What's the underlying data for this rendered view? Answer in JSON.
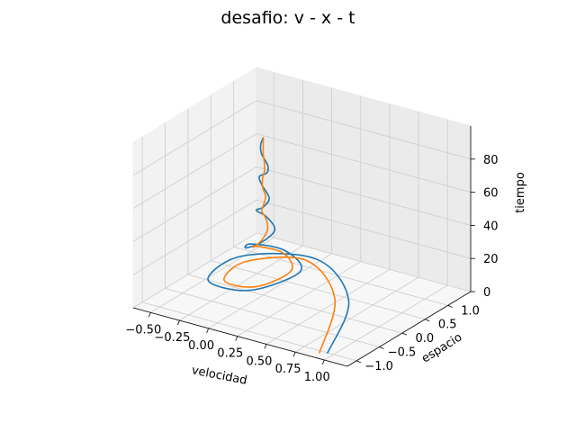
{
  "chart_data": {
    "type": "line3d",
    "title": "desafio: v - x - t",
    "xlabel": "velocidad",
    "ylabel": "espacio",
    "zlabel": "tiempo",
    "xlim": [
      -0.65,
      1.2
    ],
    "ylim": [
      -1.2,
      1.5
    ],
    "zlim": [
      0,
      100
    ],
    "xticks": [
      -0.5,
      -0.25,
      0.0,
      0.25,
      0.5,
      0.75,
      1.0
    ],
    "xtick_labels": [
      "−0.50",
      "−0.25",
      "0.00",
      "0.25",
      "0.50",
      "0.75",
      "1.00"
    ],
    "yticks": [
      -1.0,
      -0.5,
      0.0,
      0.5,
      1.0
    ],
    "ytick_labels": [
      "−1.0",
      "−0.5",
      "0.0",
      "0.5",
      "1.0"
    ],
    "zticks": [
      0,
      20,
      40,
      60,
      80
    ],
    "ztick_labels": [
      "0",
      "20",
      "40",
      "60",
      "80"
    ],
    "grid": true,
    "series": [
      {
        "color": "#1f77b4",
        "t": [
          0,
          2,
          5,
          8,
          11,
          14,
          18,
          22,
          26,
          30,
          35,
          40,
          45,
          50,
          55,
          60,
          65,
          70,
          75,
          80,
          85,
          90,
          95
        ],
        "v": [
          0.95,
          0.6,
          0.05,
          -0.38,
          -0.3,
          0.1,
          0.28,
          0.05,
          -0.15,
          -0.08,
          0.04,
          0.08,
          -0.02,
          -0.06,
          0.03,
          0.06,
          -0.03,
          -0.05,
          0.04,
          0.05,
          -0.02,
          -0.03,
          0.0
        ],
        "x": [
          -1.0,
          0.35,
          1.05,
          0.5,
          -0.45,
          -0.55,
          0.1,
          0.35,
          0.12,
          -0.18,
          -0.15,
          0.05,
          0.12,
          0.0,
          -0.08,
          -0.02,
          0.05,
          0.04,
          -0.02,
          -0.03,
          0.01,
          0.02,
          0.0
        ]
      },
      {
        "color": "#ff7f0e",
        "t": [
          0,
          2,
          5,
          8,
          11,
          14,
          18,
          22,
          26,
          30,
          35,
          40,
          45,
          50,
          55,
          60,
          65,
          70,
          75,
          80,
          85,
          90,
          95
        ],
        "v": [
          0.9,
          0.5,
          0.0,
          -0.3,
          -0.2,
          0.1,
          0.22,
          0.06,
          -0.1,
          -0.04,
          0.02,
          0.03,
          0.0,
          -0.02,
          0.01,
          0.02,
          -0.01,
          -0.01,
          0.01,
          0.01,
          0.0,
          0.0,
          0.0
        ],
        "x": [
          -1.05,
          0.3,
          0.95,
          0.4,
          -0.35,
          -0.42,
          0.05,
          0.28,
          0.1,
          -0.1,
          -0.08,
          0.02,
          0.06,
          0.02,
          -0.02,
          0.0,
          0.01,
          0.01,
          0.0,
          0.0,
          0.0,
          0.0,
          0.0
        ]
      }
    ]
  }
}
